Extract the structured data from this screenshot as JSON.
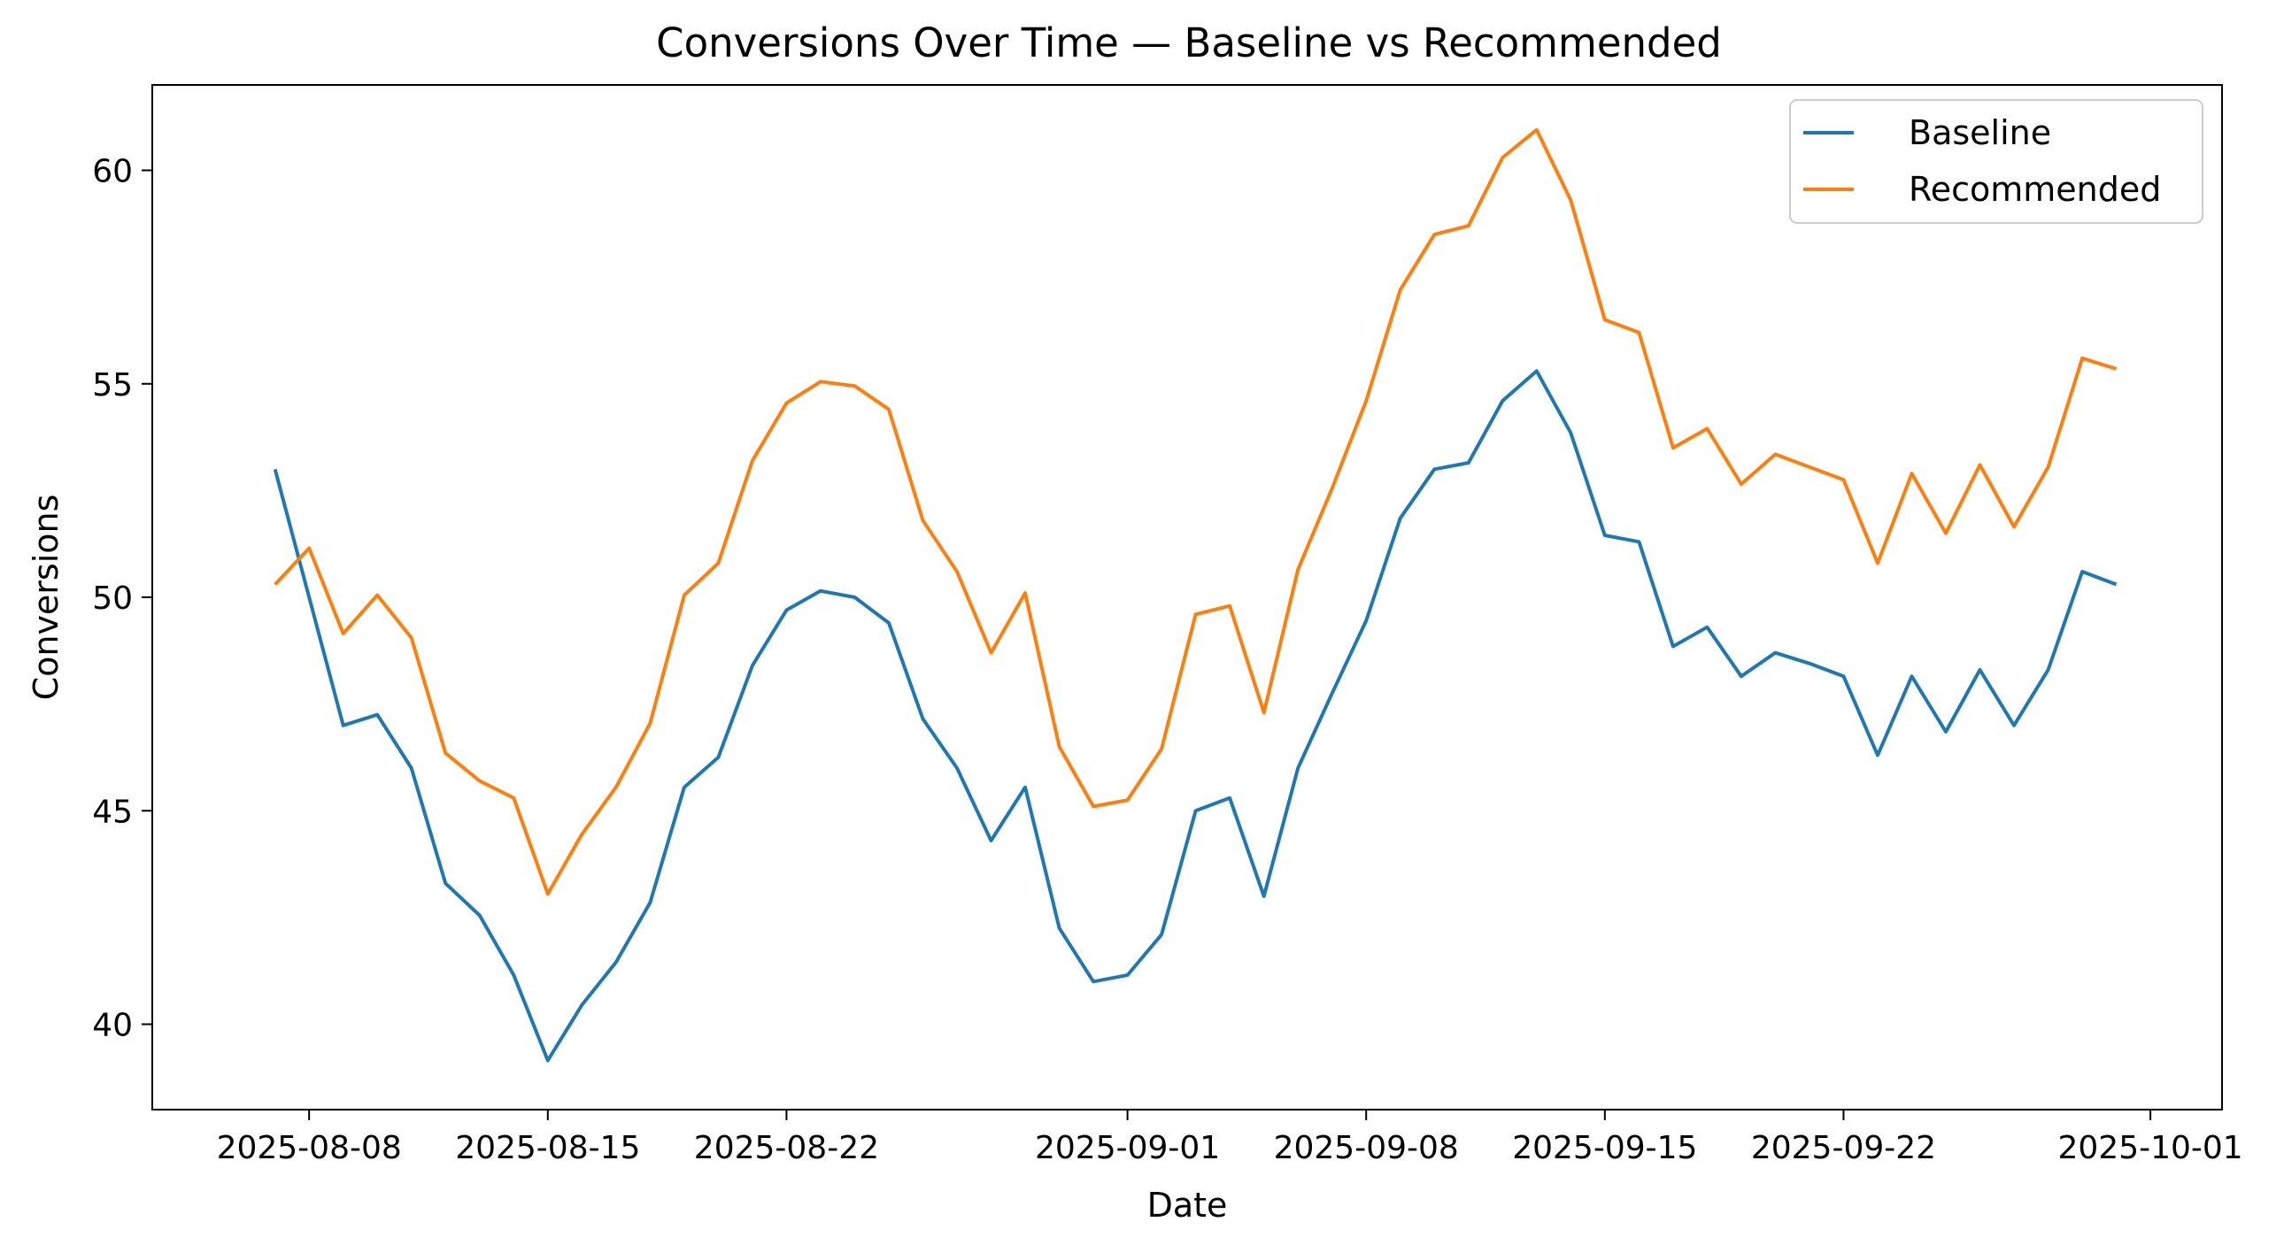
{
  "chart_data": {
    "type": "line",
    "title": "Conversions Over Time — Baseline vs Recommended",
    "xlabel": "Date",
    "ylabel": "Conversions",
    "x_start": "2025-08-07",
    "x_tick_labels": [
      "2025-08-08",
      "2025-08-15",
      "2025-08-22",
      "2025-09-01",
      "2025-09-08",
      "2025-09-15",
      "2025-09-22",
      "2025-10-01"
    ],
    "y_ticks": [
      40,
      45,
      50,
      55,
      60
    ],
    "ylim": [
      38,
      62
    ],
    "grid": false,
    "legend_position": "top-right",
    "series": [
      {
        "name": "Baseline",
        "color": "#1f77b4",
        "values": [
          53.0,
          50.0,
          47.0,
          47.25,
          46.0,
          43.3,
          42.55,
          41.15,
          39.15,
          40.45,
          41.45,
          42.85,
          45.55,
          46.25,
          48.4,
          49.7,
          50.15,
          50.0,
          49.4,
          47.15,
          46.0,
          44.3,
          45.55,
          42.25,
          41.0,
          41.15,
          42.1,
          45.0,
          45.3,
          43.0,
          46.0,
          47.75,
          49.45,
          51.85,
          53.0,
          53.15,
          54.6,
          55.3,
          53.85,
          51.45,
          51.3,
          48.85,
          49.3,
          48.15,
          48.7,
          48.45,
          48.15,
          46.3,
          48.15,
          46.85,
          48.3,
          47.0,
          48.3,
          50.6,
          50.3
        ]
      },
      {
        "name": "Recommended",
        "color": "#ff7f0e",
        "values": [
          50.3,
          51.15,
          49.15,
          50.05,
          49.05,
          46.35,
          45.7,
          45.3,
          43.05,
          44.45,
          45.55,
          47.05,
          50.05,
          50.8,
          53.2,
          54.55,
          55.05,
          54.95,
          54.4,
          51.8,
          50.6,
          48.7,
          50.1,
          46.5,
          45.1,
          45.25,
          46.45,
          49.6,
          49.8,
          47.3,
          50.65,
          52.55,
          54.6,
          57.2,
          58.5,
          58.7,
          60.3,
          60.95,
          59.3,
          56.5,
          56.2,
          53.5,
          53.95,
          52.65,
          53.35,
          53.05,
          52.75,
          50.8,
          52.9,
          51.5,
          53.1,
          51.65,
          53.05,
          55.6,
          55.35
        ]
      }
    ]
  }
}
